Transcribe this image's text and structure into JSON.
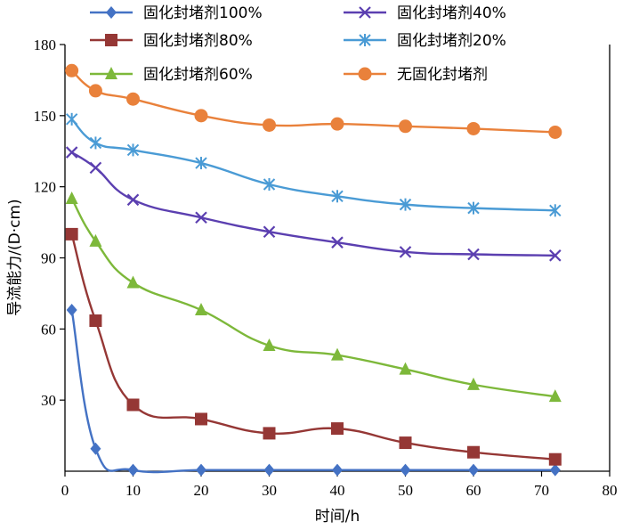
{
  "chart_data": {
    "type": "line",
    "xlabel": "时间/h",
    "ylabel": "导流能力/(D·cm)",
    "xlim": [
      0,
      80
    ],
    "ylim": [
      0,
      180
    ],
    "xticks": [
      "0",
      "10",
      "20",
      "30",
      "40",
      "50",
      "60",
      "70",
      "80"
    ],
    "yticks": [
      "30",
      "60",
      "90",
      "120",
      "150",
      "180"
    ],
    "grid": false,
    "legend_position": "top",
    "x": [
      1,
      4.5,
      10,
      20,
      30,
      40,
      50,
      60,
      72
    ],
    "series": [
      {
        "name": "固化封堵剂100%",
        "color": "#4472C4",
        "marker": "diamond",
        "values": [
          68,
          9.5,
          0.5,
          0.5,
          0.5,
          0.5,
          0.5,
          0.5,
          0.5
        ]
      },
      {
        "name": "固化封堵剂80%",
        "color": "#953735",
        "marker": "square",
        "values": [
          100,
          63.5,
          28,
          22,
          16,
          18,
          12,
          8,
          5
        ]
      },
      {
        "name": "固化封堵剂60%",
        "color": "#7DB83A",
        "marker": "triangle",
        "values": [
          115,
          97,
          79.5,
          68,
          53,
          49,
          43,
          36.5,
          31.5
        ]
      },
      {
        "name": "固化封堵剂40%",
        "color": "#5B3FB0",
        "marker": "x",
        "values": [
          134.5,
          128,
          114.5,
          107,
          101,
          96.5,
          92.5,
          91.5,
          91
        ]
      },
      {
        "name": "固化封堵剂20%",
        "color": "#4A9BD5",
        "marker": "asterisk",
        "values": [
          148.5,
          138.5,
          135.5,
          130,
          121,
          116,
          112.5,
          111,
          110
        ]
      },
      {
        "name": "无固化封堵剂",
        "color": "#E9813B",
        "marker": "circle",
        "values": [
          169,
          160.5,
          157,
          150,
          146,
          146.5,
          145.5,
          144.5,
          143
        ]
      }
    ]
  }
}
